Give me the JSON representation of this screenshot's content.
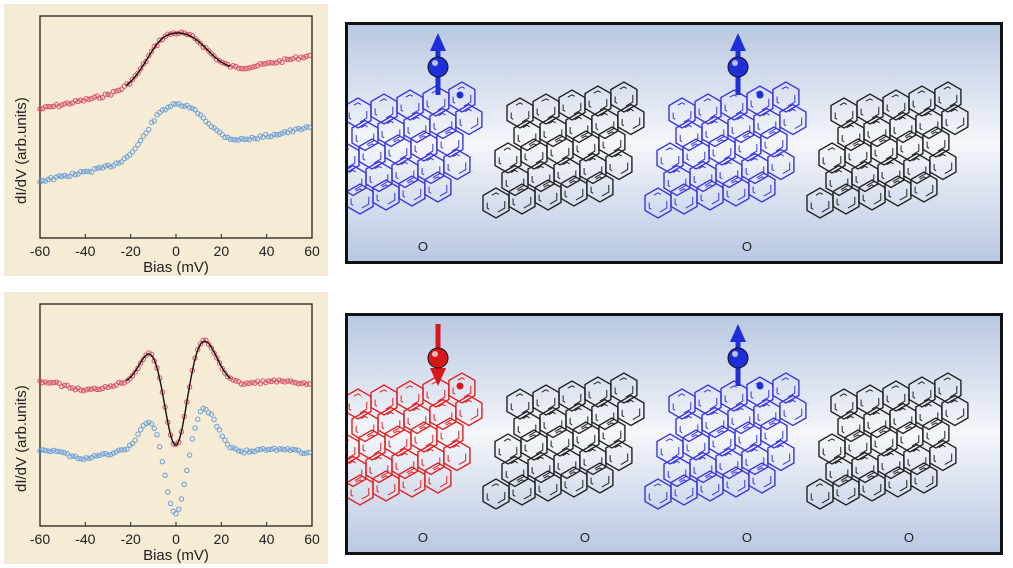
{
  "panels": [
    {
      "id": "top",
      "plot": {
        "ylabel": "dI/dV (arb.units)",
        "xlabel": "Bias (mV)",
        "xticks": [
          "-60",
          "-40",
          "-20",
          "0",
          "20",
          "40",
          "60"
        ]
      },
      "spins": [
        "up",
        "up"
      ],
      "segment_colors": [
        "#3a35e0",
        "#222222",
        "#3a35e0",
        "#222222"
      ],
      "carbonyl_label": "O"
    },
    {
      "id": "bottom",
      "plot": {
        "ylabel": "dI/dV (arb.units)",
        "xlabel": "Bias (mV)",
        "xticks": [
          "-60",
          "-40",
          "-20",
          "0",
          "20",
          "40",
          "60"
        ]
      },
      "spins": [
        "down",
        "up"
      ],
      "segment_colors": [
        "#e02020",
        "#222222",
        "#3a35e0",
        "#222222"
      ],
      "carbonyl_label": "O"
    }
  ],
  "colors": {
    "red_trace": "#d9506a",
    "blue_trace": "#6b9fd8",
    "fit_line": "#111111",
    "spin_up": "#1f2fd8",
    "spin_down": "#d81818"
  }
}
